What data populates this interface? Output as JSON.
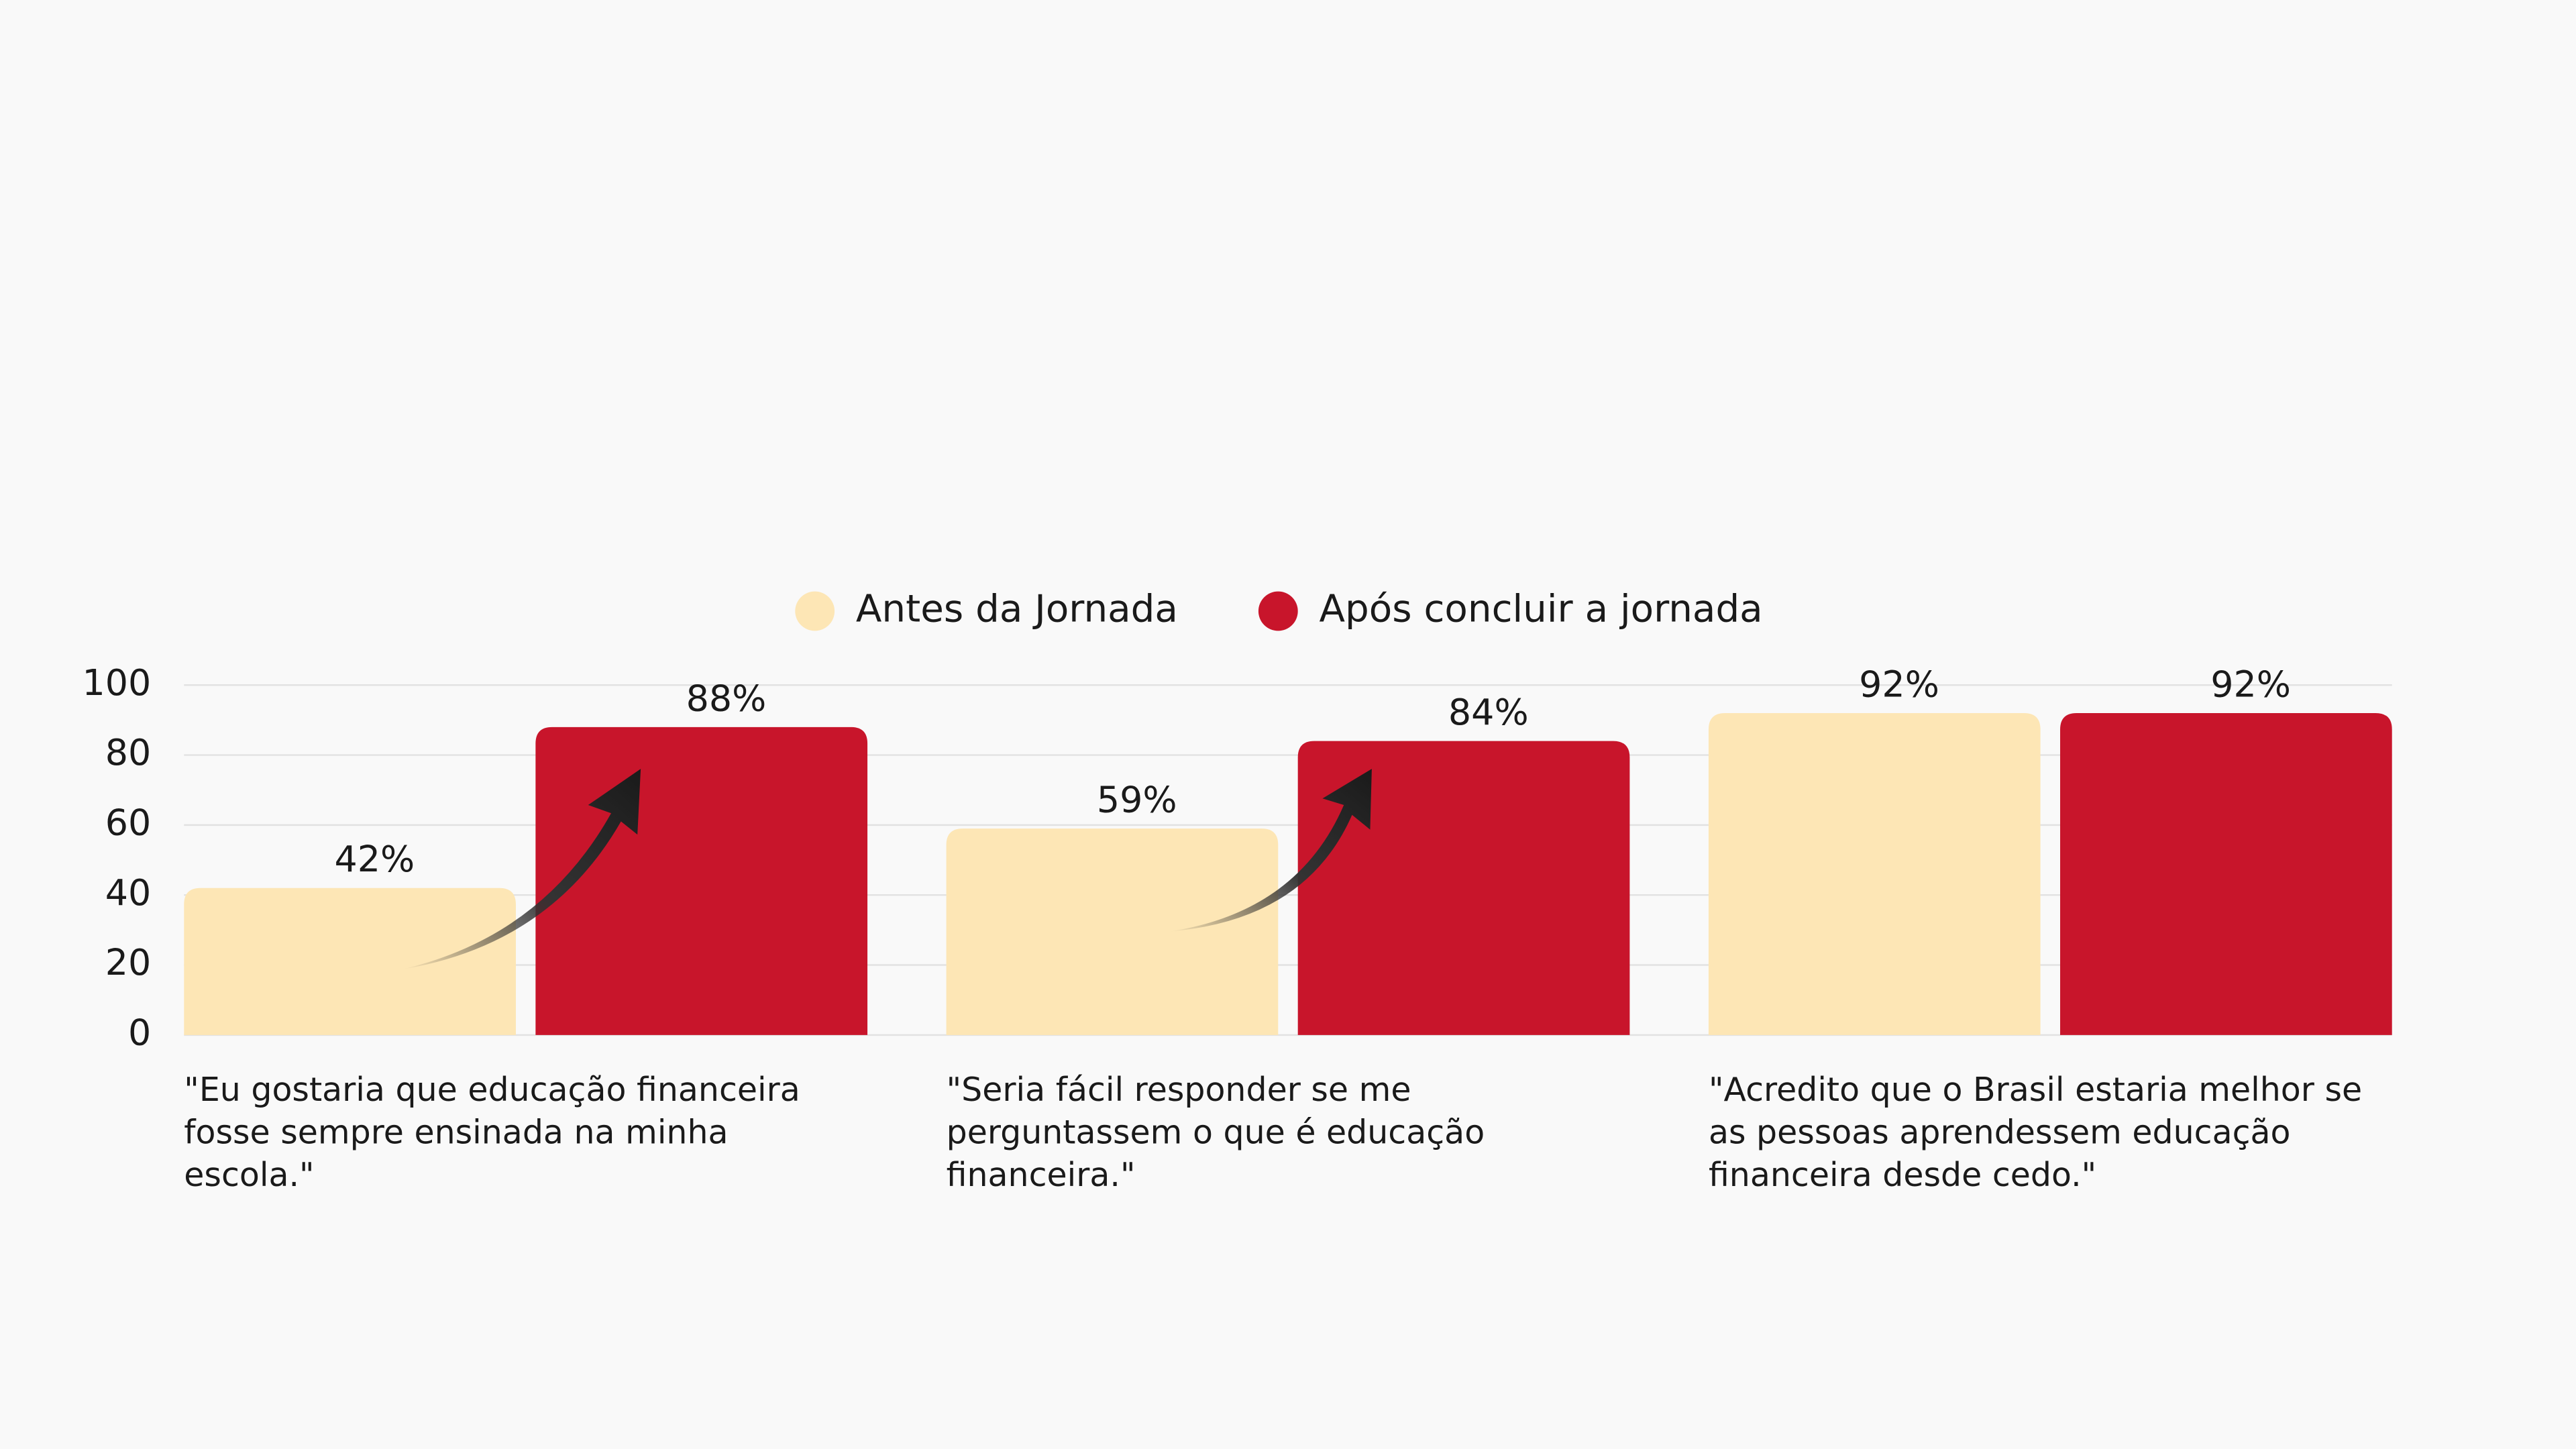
{
  "chart_data": {
    "type": "bar",
    "categories": [
      "\"Eu gostaria que educação financeira fosse sempre ensinada na minha escola.\"",
      "\"Seria fácil responder se me perguntassem o que é educação financeira.\"",
      "\"Acredito que o Brasil estaria melhor se as pessoas aprendessem educação financeira desde cedo.\""
    ],
    "series": [
      {
        "name": "Antes da Jornada",
        "color": "#fde6b5",
        "values": [
          42,
          59,
          92
        ],
        "value_labels": [
          "42%",
          "59%",
          "92%"
        ]
      },
      {
        "name": "Após concluir a jornada",
        "color": "#c8152b",
        "values": [
          88,
          84,
          92
        ],
        "value_labels": [
          "88%",
          "84%",
          "92%"
        ]
      }
    ],
    "ylim": [
      0,
      100
    ],
    "yticks": [
      0,
      20,
      40,
      60,
      80,
      100
    ],
    "grid": true,
    "legend": "top"
  }
}
